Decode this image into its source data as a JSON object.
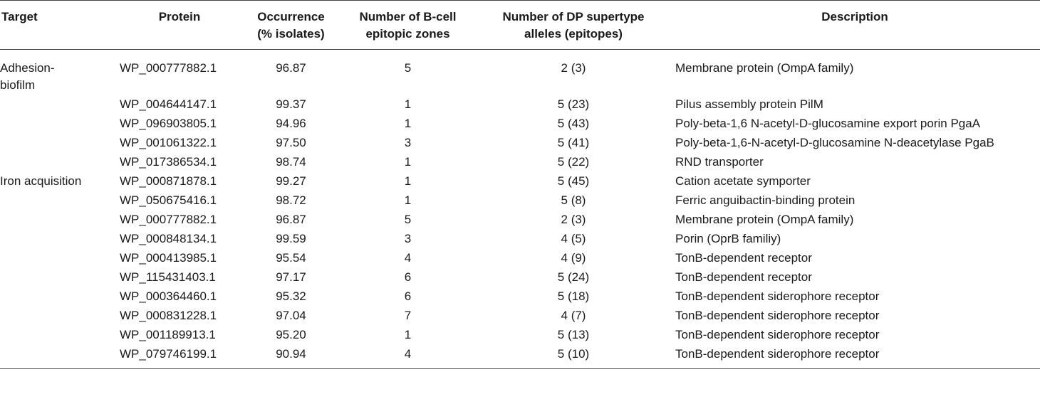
{
  "table": {
    "headers": {
      "target": "Target",
      "protein": "Protein",
      "occurrence": "Occurrence\n(% isolates)",
      "bcell": "Number of B-cell\nepitopic zones",
      "dp": "Number of DP supertype\nalleles (epitopes)",
      "description": "Description"
    },
    "rows": [
      {
        "target": "Adhesion-biofilm",
        "protein": "WP_000777882.1",
        "occurrence": "96.87",
        "bcell": "5",
        "dp": "2 (3)",
        "description": "Membrane protein (OmpA family)"
      },
      {
        "target": "",
        "protein": "WP_004644147.1",
        "occurrence": "99.37",
        "bcell": "1",
        "dp": "5 (23)",
        "description": "Pilus assembly protein PilM"
      },
      {
        "target": "",
        "protein": "WP_096903805.1",
        "occurrence": "94.96",
        "bcell": "1",
        "dp": "5 (43)",
        "description": "Poly-beta-1,6 N-acetyl-D-glucosamine export porin PgaA"
      },
      {
        "target": "",
        "protein": "WP_001061322.1",
        "occurrence": "97.50",
        "bcell": "3",
        "dp": "5 (41)",
        "description": "Poly-beta-1,6-N-acetyl-D-glucosamine N-deacetylase PgaB"
      },
      {
        "target": "",
        "protein": "WP_017386534.1",
        "occurrence": "98.74",
        "bcell": "1",
        "dp": "5 (22)",
        "description": "RND transporter"
      },
      {
        "target": "Iron acquisition",
        "protein": "WP_000871878.1",
        "occurrence": "99.27",
        "bcell": "1",
        "dp": "5 (45)",
        "description": "Cation acetate symporter"
      },
      {
        "target": "",
        "protein": "WP_050675416.1",
        "occurrence": "98.72",
        "bcell": "1",
        "dp": "5 (8)",
        "description": "Ferric anguibactin-binding protein"
      },
      {
        "target": "",
        "protein": "WP_000777882.1",
        "occurrence": "96.87",
        "bcell": "5",
        "dp": "2 (3)",
        "description": "Membrane protein (OmpA family)"
      },
      {
        "target": "",
        "protein": "WP_000848134.1",
        "occurrence": "99.59",
        "bcell": "3",
        "dp": "4 (5)",
        "description": "Porin (OprB familiy)"
      },
      {
        "target": "",
        "protein": "WP_000413985.1",
        "occurrence": "95.54",
        "bcell": "4",
        "dp": "4 (9)",
        "description": "TonB-dependent receptor"
      },
      {
        "target": "",
        "protein": "WP_115431403.1",
        "occurrence": "97.17",
        "bcell": "6",
        "dp": "5 (24)",
        "description": "TonB-dependent receptor"
      },
      {
        "target": "",
        "protein": "WP_000364460.1",
        "occurrence": "95.32",
        "bcell": "6",
        "dp": "5 (18)",
        "description": "TonB-dependent siderophore receptor"
      },
      {
        "target": "",
        "protein": "WP_000831228.1",
        "occurrence": "97.04",
        "bcell": "7",
        "dp": "4 (7)",
        "description": "TonB-dependent siderophore receptor"
      },
      {
        "target": "",
        "protein": "WP_001189913.1",
        "occurrence": "95.20",
        "bcell": "1",
        "dp": "5 (13)",
        "description": "TonB-dependent siderophore receptor"
      },
      {
        "target": "",
        "protein": "WP_079746199.1",
        "occurrence": "90.94",
        "bcell": "4",
        "dp": "5 (10)",
        "description": "TonB-dependent siderophore receptor"
      }
    ]
  }
}
